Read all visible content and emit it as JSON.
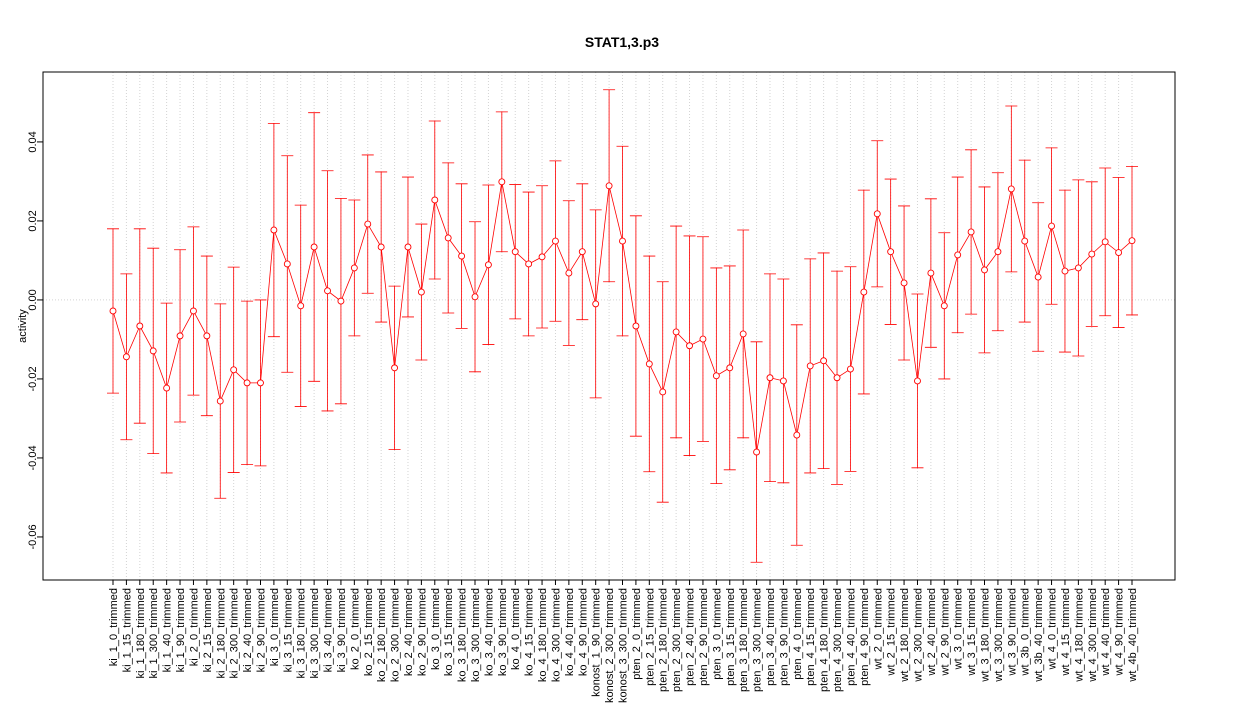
{
  "chart_data": {
    "type": "errorbar",
    "title": "STAT1,3.p3",
    "y_label": "activity",
    "categories": [
      "ki_1_0_trimmed",
      "ki_1_15_trimmed",
      "ki_1_180_trimmed",
      "ki_1_300_trimmed",
      "ki_1_40_trimmed",
      "ki_1_90_trimmed",
      "ki_2_0_trimmed",
      "ki_2_15_trimmed",
      "ki_2_180_trimmed",
      "ki_2_300_trimmed",
      "ki_2_40_trimmed",
      "ki_2_90_trimmed",
      "ki_3_0_trimmed",
      "ki_3_15_trimmed",
      "ki_3_180_trimmed",
      "ki_3_300_trimmed",
      "ki_3_40_trimmed",
      "ki_3_90_trimmed",
      "ko_2_0_trimmed",
      "ko_2_15_trimmed",
      "ko_2_180_trimmed",
      "ko_2_300_trimmed",
      "ko_2_40_trimmed",
      "ko_2_90_trimmed",
      "ko_3_0_trimmed",
      "ko_3_15_trimmed",
      "ko_3_180_trimmed",
      "ko_3_300_trimmed",
      "ko_3_40_trimmed",
      "ko_3_90_trimmed",
      "ko_4_0_trimmed",
      "ko_4_15_trimmed",
      "ko_4_180_trimmed",
      "ko_4_300_trimmed",
      "ko_4_40_trimmed",
      "ko_4_90_trimmed",
      "konost_1_90_trimmed",
      "konost_2_300_trimmed",
      "konost_3_300_trimmed",
      "pten_2_0_trimmed",
      "pten_2_15_trimmed",
      "pten_2_180_trimmed",
      "pten_2_300_trimmed",
      "pten_2_40_trimmed",
      "pten_2_90_trimmed",
      "pten_3_0_trimmed",
      "pten_3_15_trimmed",
      "pten_3_180_trimmed",
      "pten_3_300_trimmed",
      "pten_3_40_trimmed",
      "pten_3_90_trimmed",
      "pten_4_0_trimmed",
      "pten_4_15_trimmed",
      "pten_4_180_trimmed",
      "pten_4_300_trimmed",
      "pten_4_40_trimmed",
      "pten_4_90_trimmed",
      "wt_2_0_trimmed",
      "wt_2_15_trimmed",
      "wt_2_180_trimmed",
      "wt_2_300_trimmed",
      "wt_2_40_trimmed",
      "wt_2_90_trimmed",
      "wt_3_0_trimmed",
      "wt_3_15_trimmed",
      "wt_3_180_trimmed",
      "wt_3_300_trimmed",
      "wt_3_90_trimmed",
      "wt_3b_0_trimmed",
      "wt_3b_40_trimmed",
      "wt_4_0_trimmed",
      "wt_4_15_trimmed",
      "wt_4_180_trimmed",
      "wt_4_300_trimmed",
      "wt_4_40_trimmed",
      "wt_4_90_trimmed",
      "wt_4b_40_trimmed"
    ],
    "series": [
      {
        "color": "#ff0000",
        "values": [
          -0.0028,
          -0.0144,
          -0.0066,
          -0.0129,
          -0.0223,
          -0.0091,
          -0.0028,
          -0.0091,
          -0.0256,
          -0.0177,
          -0.021,
          -0.021,
          0.0177,
          0.0091,
          -0.0015,
          0.0134,
          0.0023,
          -0.0003,
          0.0081,
          0.0192,
          0.0134,
          -0.0172,
          0.0134,
          0.002,
          0.0253,
          0.0157,
          0.0111,
          0.0008,
          0.0089,
          0.0299,
          0.0122,
          0.0091,
          0.0109,
          0.0149,
          0.0068,
          0.0122,
          -0.001,
          0.0289,
          0.0149,
          -0.0066,
          -0.0162,
          -0.0233,
          -0.0081,
          -0.0116,
          -0.0099,
          -0.0192,
          -0.0172,
          -0.0086,
          -0.0385,
          -0.0197,
          -0.0205,
          -0.0342,
          -0.0167,
          -0.0154,
          -0.0197,
          -0.0175,
          0.002,
          0.0218,
          0.0122,
          0.0043,
          -0.0205,
          0.0068,
          -0.0015,
          0.0114,
          0.0172,
          0.0076,
          0.0122,
          0.0281,
          0.0149,
          0.0058,
          0.0187,
          0.0073,
          0.0081,
          0.0116,
          0.0147,
          0.012,
          0.015
        ],
        "errors": [
          0.0208,
          0.021,
          0.0246,
          0.026,
          0.0215,
          0.0218,
          0.0213,
          0.0202,
          0.0246,
          0.026,
          0.0207,
          0.021,
          0.027,
          0.0274,
          0.0255,
          0.034,
          0.0304,
          0.026,
          0.0172,
          0.0175,
          0.019,
          0.0207,
          0.0177,
          0.0172,
          0.02,
          0.019,
          0.0183,
          0.019,
          0.0202,
          0.0177,
          0.017,
          0.0182,
          0.018,
          0.0203,
          0.0183,
          0.0172,
          0.0238,
          0.0243,
          0.024,
          0.0279,
          0.0273,
          0.0279,
          0.0268,
          0.0278,
          0.0259,
          0.0273,
          0.0258,
          0.0263,
          0.0279,
          0.0263,
          0.0258,
          0.0279,
          0.0271,
          0.0273,
          0.027,
          0.0259,
          0.0258,
          0.0185,
          0.0184,
          0.0195,
          0.022,
          0.0188,
          0.0185,
          0.0197,
          0.0208,
          0.021,
          0.02,
          0.021,
          0.0205,
          0.0188,
          0.0198,
          0.0205,
          0.0223,
          0.0183,
          0.0187,
          0.019,
          0.0188
        ]
      }
    ],
    "ylim": [
      -0.0709,
      0.0577
    ],
    "yticks": [
      -0.06,
      -0.04,
      -0.02,
      {
        "value": 0,
        "label": "0.00"
      },
      0.02,
      0.04
    ],
    "grid": true
  }
}
